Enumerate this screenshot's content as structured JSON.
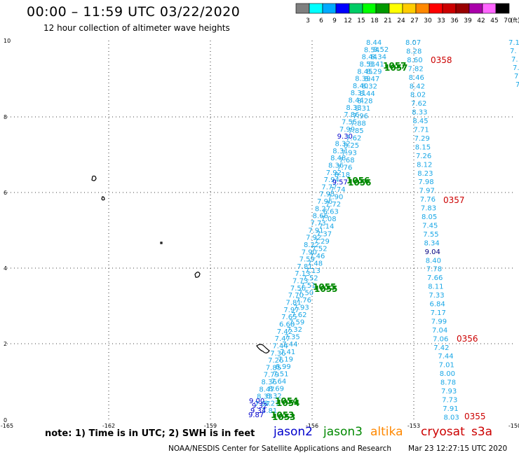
{
  "header": {
    "title": "00:00 – 11:59 UTC 03/22/2020",
    "subtitle": "12 hour collection of altimeter wave heights"
  },
  "colorbar": {
    "unit": "(ft)",
    "labels": [
      "3",
      "6",
      "9",
      "12",
      "15",
      "18",
      "21",
      "24",
      "27",
      "30",
      "33",
      "36",
      "39",
      "42",
      "45",
      "70"
    ],
    "colors": [
      "#7f7f7f",
      "#00ffff",
      "#00aaff",
      "#0000ff",
      "#00cc66",
      "#00ff00",
      "#009900",
      "#ffff00",
      "#ffcc00",
      "#ff8800",
      "#ff0000",
      "#cc0000",
      "#990000",
      "#aa00aa",
      "#ff66ff",
      "#000000"
    ]
  },
  "axes": {
    "x_ticks": [
      "-165",
      "-162",
      "-159",
      "-156",
      "-153",
      "-150"
    ],
    "y_ticks": [
      "10",
      "8",
      "6",
      "4",
      "2",
      "0"
    ]
  },
  "tracks": {
    "jason2_color": "#0000cc",
    "jason3_color": "#008800",
    "cryosat_color": "#cc0000",
    "diag_color": "#1aa7e6",
    "diag_a": [
      "8.44",
      "8.54",
      "8.44",
      "8.53",
      "8.45",
      "8.39",
      "8.40",
      "8.31",
      "8.44",
      "8.33",
      "7.86",
      "7.55",
      "7.99",
      "9.30",
      "8.32",
      "8.31",
      "8.48",
      "8.36",
      "7.92",
      "7.94",
      "7.77",
      "7.95",
      "7.96",
      "8.27",
      "8.66",
      "7.73",
      "7.91",
      "7.92",
      "8.22",
      "7.90",
      "7.59",
      "7.81",
      "7.13",
      "7.73",
      "7.56",
      "7.70",
      "7.81",
      "7.97",
      "7.65",
      "6.68",
      "7.42",
      "7.47",
      "7.44",
      "7.36",
      "7.26",
      "7.85",
      "7.79",
      "8.36",
      "8.47",
      "8.33",
      "7.97"
    ],
    "diag_b": [
      "8.52",
      "8.34",
      "8.41",
      "8.29",
      "8.47",
      "8.32",
      "8.44",
      "8.28",
      "8.31",
      "7.96",
      "7.88",
      "7.85",
      "7.62",
      "8.25",
      "7.93",
      "7.68",
      "7.76",
      "8.18",
      "9.57",
      "7.74",
      "7.90",
      "7.72",
      "6.63",
      "7.08",
      "7.14",
      "7.37",
      "7.29",
      "7.52",
      "7.46",
      "7.48",
      "7.13",
      "7.52",
      "7.51",
      "7.50",
      "7.76",
      "7.93",
      "7.62",
      "7.59",
      "7.32",
      "7.35",
      "7.44",
      "7.41",
      "7.19",
      "6.99",
      "7.51",
      "7.64",
      "8.69",
      "8.32",
      "8.27",
      "7.81"
    ],
    "jason2_labels": [
      "9.30",
      "9.57",
      "9.00",
      "9.32",
      "9.34",
      "9.87"
    ],
    "col": [
      "8.07",
      "8.28",
      "8.60",
      "7.82",
      "8.46",
      "8.42",
      "8.02",
      "7.62",
      "8.33",
      "8.45",
      "7.71",
      "7.29",
      "8.15",
      "7.26",
      "8.12",
      "8.23",
      "7.98",
      "7.97",
      "7.76",
      "7.83",
      "8.05",
      "7.45",
      "7.55",
      "8.34",
      "9.04",
      "8.40",
      "7.78",
      "7.66",
      "8.11",
      "7.33",
      "6.84",
      "7.17",
      "7.99",
      "7.04",
      "7.06",
      "7.42",
      "7.44",
      "7.01",
      "8.00",
      "8.78",
      "7.93",
      "7.73",
      "7.91",
      "8.03"
    ],
    "col_dark_label": "9.04",
    "edge": [
      "7.1",
      "7.",
      "7.",
      "7.",
      "7.",
      "7."
    ],
    "jason3_passes": [
      "1057",
      "1056",
      "1055",
      "1054",
      "1053"
    ],
    "cryosat_passes": [
      "0358",
      "0357",
      "0356",
      "0355"
    ]
  },
  "legend": {
    "note": "note: 1) Time is in UTC; 2) SWH is in feet",
    "sats": [
      {
        "name": "jason2",
        "color": "#0000cc"
      },
      {
        "name": "jason3",
        "color": "#008800"
      },
      {
        "name": "altika",
        "color": "#ff8800"
      },
      {
        "name": "cryosat",
        "color": "#cc0000"
      },
      {
        "name": "s3a",
        "color": "#cc0000"
      }
    ]
  },
  "footer": {
    "credit": "NOAA/NESDIS Center for Satellite Applications and Research",
    "stamp": "Mar 23 12:27:15 UTC 2020"
  }
}
